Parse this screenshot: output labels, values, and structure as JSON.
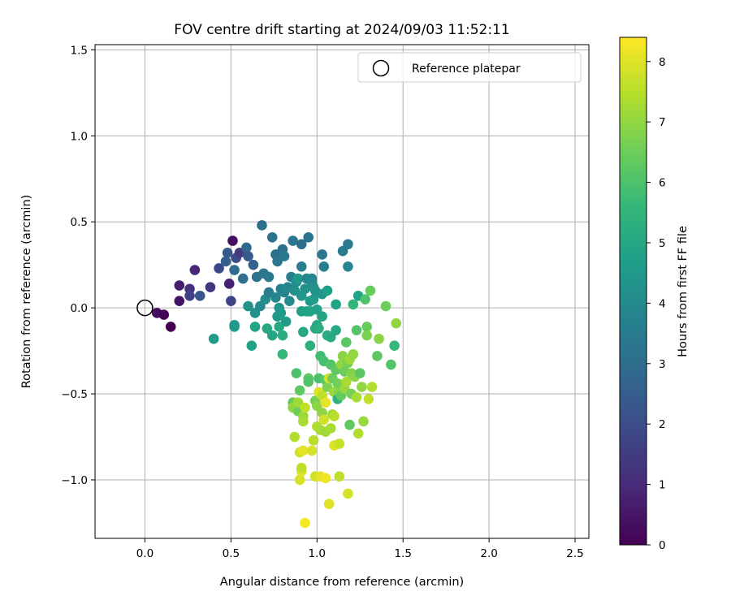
{
  "chart_data": {
    "type": "scatter",
    "title": "FOV centre drift starting at 2024/09/03 11:52:11",
    "xlabel": "Angular distance from reference (arcmin)",
    "ylabel": "Rotation from reference (arcmin)",
    "xlim": [
      -0.29,
      2.58
    ],
    "ylim": [
      -1.34,
      1.53
    ],
    "xticks": [
      0.0,
      0.5,
      1.0,
      1.5,
      2.0,
      2.5
    ],
    "xtick_labels": [
      "0.0",
      "0.5",
      "1.0",
      "1.5",
      "2.0",
      "2.5"
    ],
    "yticks": [
      -1.0,
      -0.5,
      0.0,
      0.5,
      1.0,
      1.5
    ],
    "ytick_labels": [
      "−1.0",
      "−0.5",
      "0.0",
      "0.5",
      "1.0",
      "1.5"
    ],
    "grid": true,
    "legend": {
      "position": "top-right",
      "entries": [
        "Reference platepar"
      ]
    },
    "reference_point": {
      "x": 0.0,
      "y": 0.0,
      "label": "Reference platepar"
    },
    "colorbar": {
      "label": "Hours from first FF file",
      "min": 0,
      "max": 8.4,
      "ticks": [
        0,
        1,
        2,
        3,
        4,
        5,
        6,
        7,
        8
      ],
      "tick_labels": [
        "0",
        "1",
        "2",
        "3",
        "4",
        "5",
        "6",
        "7",
        "8"
      ],
      "colormap": [
        "#440154",
        "#482878",
        "#3e4989",
        "#31688e",
        "#26828e",
        "#1f9e89",
        "#35b779",
        "#6ece58",
        "#b5de2b",
        "#fde725"
      ]
    },
    "points": [
      {
        "x": 0.07,
        "y": -0.03,
        "h": 0.3
      },
      {
        "x": 0.11,
        "y": -0.04,
        "h": 0.1
      },
      {
        "x": 0.15,
        "y": -0.11,
        "h": 0.0
      },
      {
        "x": 0.2,
        "y": 0.04,
        "h": 0.4
      },
      {
        "x": 0.2,
        "y": 0.13,
        "h": 0.7
      },
      {
        "x": 0.26,
        "y": 0.11,
        "h": 1.2
      },
      {
        "x": 0.26,
        "y": 0.07,
        "h": 1.6
      },
      {
        "x": 0.29,
        "y": 0.22,
        "h": 0.9
      },
      {
        "x": 0.32,
        "y": 0.07,
        "h": 2.2
      },
      {
        "x": 0.38,
        "y": 0.12,
        "h": 1.3
      },
      {
        "x": 0.4,
        "y": -0.18,
        "h": 4.6
      },
      {
        "x": 0.43,
        "y": 0.23,
        "h": 1.8
      },
      {
        "x": 0.47,
        "y": 0.27,
        "h": 2.5
      },
      {
        "x": 0.48,
        "y": 0.32,
        "h": 2.3
      },
      {
        "x": 0.49,
        "y": 0.14,
        "h": 0.8
      },
      {
        "x": 0.5,
        "y": 0.04,
        "h": 1.7
      },
      {
        "x": 0.51,
        "y": 0.39,
        "h": 0.3
      },
      {
        "x": 0.52,
        "y": -0.11,
        "h": 4.7
      },
      {
        "x": 0.52,
        "y": -0.1,
        "h": 4.5
      },
      {
        "x": 0.52,
        "y": 0.22,
        "h": 2.9
      },
      {
        "x": 0.53,
        "y": 0.29,
        "h": 2.0
      },
      {
        "x": 0.55,
        "y": 0.32,
        "h": 1.5
      },
      {
        "x": 0.57,
        "y": 0.17,
        "h": 3.0
      },
      {
        "x": 0.59,
        "y": 0.35,
        "h": 2.8
      },
      {
        "x": 0.6,
        "y": 0.3,
        "h": 2.4
      },
      {
        "x": 0.6,
        "y": 0.01,
        "h": 4.3
      },
      {
        "x": 0.62,
        "y": -0.22,
        "h": 4.8
      },
      {
        "x": 0.63,
        "y": 0.25,
        "h": 2.6
      },
      {
        "x": 0.64,
        "y": -0.11,
        "h": 4.9
      },
      {
        "x": 0.64,
        "y": -0.03,
        "h": 4.2
      },
      {
        "x": 0.65,
        "y": 0.18,
        "h": 3.2
      },
      {
        "x": 0.67,
        "y": 0.01,
        "h": 4.0
      },
      {
        "x": 0.68,
        "y": 0.48,
        "h": 3.1
      },
      {
        "x": 0.69,
        "y": 0.2,
        "h": 3.3
      },
      {
        "x": 0.7,
        "y": 0.05,
        "h": 4.1
      },
      {
        "x": 0.71,
        "y": -0.12,
        "h": 5.0
      },
      {
        "x": 0.72,
        "y": 0.18,
        "h": 3.4
      },
      {
        "x": 0.72,
        "y": 0.09,
        "h": 3.6
      },
      {
        "x": 0.74,
        "y": -0.16,
        "h": 4.9
      },
      {
        "x": 0.74,
        "y": 0.41,
        "h": 3.2
      },
      {
        "x": 0.76,
        "y": 0.31,
        "h": 3.1
      },
      {
        "x": 0.76,
        "y": 0.06,
        "h": 3.9
      },
      {
        "x": 0.77,
        "y": 0.27,
        "h": 3.3
      },
      {
        "x": 0.77,
        "y": -0.05,
        "h": 4.4
      },
      {
        "x": 0.78,
        "y": 0.0,
        "h": 4.3
      },
      {
        "x": 0.78,
        "y": -0.11,
        "h": 5.0
      },
      {
        "x": 0.79,
        "y": -0.03,
        "h": 4.5
      },
      {
        "x": 0.79,
        "y": 0.11,
        "h": 3.7
      },
      {
        "x": 0.8,
        "y": -0.16,
        "h": 5.1
      },
      {
        "x": 0.8,
        "y": 0.34,
        "h": 3.0
      },
      {
        "x": 0.8,
        "y": -0.27,
        "h": 5.6
      },
      {
        "x": 0.81,
        "y": 0.09,
        "h": 3.8
      },
      {
        "x": 0.81,
        "y": 0.3,
        "h": 3.4
      },
      {
        "x": 0.82,
        "y": -0.08,
        "h": 4.6
      },
      {
        "x": 0.83,
        "y": 0.12,
        "h": 3.9
      },
      {
        "x": 0.84,
        "y": 0.04,
        "h": 4.0
      },
      {
        "x": 0.85,
        "y": 0.18,
        "h": 3.6
      },
      {
        "x": 0.86,
        "y": 0.39,
        "h": 3.3
      },
      {
        "x": 0.86,
        "y": -0.55,
        "h": 6.4
      },
      {
        "x": 0.86,
        "y": -0.58,
        "h": 7.0
      },
      {
        "x": 0.87,
        "y": -0.75,
        "h": 7.4
      },
      {
        "x": 0.87,
        "y": 0.1,
        "h": 4.2
      },
      {
        "x": 0.88,
        "y": -0.38,
        "h": 6.0
      },
      {
        "x": 0.88,
        "y": 0.15,
        "h": 4.1
      },
      {
        "x": 0.89,
        "y": -0.6,
        "h": 6.5
      },
      {
        "x": 0.89,
        "y": 0.17,
        "h": 4.5
      },
      {
        "x": 0.89,
        "y": -0.55,
        "h": 7.2
      },
      {
        "x": 0.9,
        "y": -0.48,
        "h": 6.3
      },
      {
        "x": 0.9,
        "y": -0.84,
        "h": 7.8
      },
      {
        "x": 0.9,
        "y": -1.0,
        "h": 7.9
      },
      {
        "x": 0.91,
        "y": -0.95,
        "h": 8.0
      },
      {
        "x": 0.91,
        "y": -0.93,
        "h": 7.6
      },
      {
        "x": 0.91,
        "y": 0.37,
        "h": 3.1
      },
      {
        "x": 0.91,
        "y": 0.24,
        "h": 3.5
      },
      {
        "x": 0.91,
        "y": 0.07,
        "h": 4.4
      },
      {
        "x": 0.91,
        "y": -0.02,
        "h": 4.7
      },
      {
        "x": 0.92,
        "y": -0.14,
        "h": 5.0
      },
      {
        "x": 0.92,
        "y": -0.83,
        "h": 8.1
      },
      {
        "x": 0.92,
        "y": -0.63,
        "h": 7.1
      },
      {
        "x": 0.92,
        "y": -0.66,
        "h": 7.3
      },
      {
        "x": 0.93,
        "y": -1.25,
        "h": 8.3
      },
      {
        "x": 0.93,
        "y": -0.58,
        "h": 7.6
      },
      {
        "x": 0.93,
        "y": 0.11,
        "h": 4.3
      },
      {
        "x": 0.94,
        "y": 0.17,
        "h": 3.9
      },
      {
        "x": 0.94,
        "y": -0.02,
        "h": 4.8
      },
      {
        "x": 0.95,
        "y": 0.41,
        "h": 3.2
      },
      {
        "x": 0.95,
        "y": -0.41,
        "h": 6.2
      },
      {
        "x": 0.95,
        "y": -0.43,
        "h": 6.1
      },
      {
        "x": 0.96,
        "y": 0.04,
        "h": 4.4
      },
      {
        "x": 0.96,
        "y": -0.22,
        "h": 5.3
      },
      {
        "x": 0.96,
        "y": -0.02,
        "h": 4.9
      },
      {
        "x": 0.97,
        "y": 0.17,
        "h": 3.8
      },
      {
        "x": 0.97,
        "y": 0.15,
        "h": 4.0
      },
      {
        "x": 0.97,
        "y": -0.83,
        "h": 7.9
      },
      {
        "x": 0.98,
        "y": 0.12,
        "h": 4.2
      },
      {
        "x": 0.98,
        "y": -0.77,
        "h": 7.5
      },
      {
        "x": 0.98,
        "y": 0.05,
        "h": 4.6
      },
      {
        "x": 0.99,
        "y": -0.54,
        "h": 6.6
      },
      {
        "x": 0.99,
        "y": -0.12,
        "h": 5.1
      },
      {
        "x": 0.99,
        "y": -0.98,
        "h": 7.8
      },
      {
        "x": 0.99,
        "y": 0.1,
        "h": 4.3
      },
      {
        "x": 1.0,
        "y": -0.69,
        "h": 7.4
      },
      {
        "x": 1.0,
        "y": -0.01,
        "h": 4.8
      },
      {
        "x": 1.0,
        "y": -0.1,
        "h": 5.0
      },
      {
        "x": 1.0,
        "y": -0.57,
        "h": 6.9
      },
      {
        "x": 1.01,
        "y": -0.49,
        "h": 8.0
      },
      {
        "x": 1.01,
        "y": -0.41,
        "h": 6.0
      },
      {
        "x": 1.01,
        "y": -0.12,
        "h": 5.2
      },
      {
        "x": 1.02,
        "y": -0.71,
        "h": 7.3
      },
      {
        "x": 1.02,
        "y": -0.28,
        "h": 5.8
      },
      {
        "x": 1.02,
        "y": -0.98,
        "h": 8.1
      },
      {
        "x": 1.03,
        "y": 0.31,
        "h": 3.3
      },
      {
        "x": 1.03,
        "y": -0.51,
        "h": 7.6
      },
      {
        "x": 1.03,
        "y": -0.61,
        "h": 7.0
      },
      {
        "x": 1.03,
        "y": -0.05,
        "h": 4.9
      },
      {
        "x": 1.03,
        "y": 0.08,
        "h": 4.4
      },
      {
        "x": 1.04,
        "y": -0.31,
        "h": 5.9
      },
      {
        "x": 1.04,
        "y": -0.65,
        "h": 7.8
      },
      {
        "x": 1.04,
        "y": 0.24,
        "h": 3.6
      },
      {
        "x": 1.05,
        "y": -0.99,
        "h": 8.2
      },
      {
        "x": 1.05,
        "y": -0.55,
        "h": 8.1
      },
      {
        "x": 1.05,
        "y": -0.42,
        "h": 6.2
      },
      {
        "x": 1.05,
        "y": -0.72,
        "h": 7.2
      },
      {
        "x": 1.06,
        "y": -0.16,
        "h": 5.2
      },
      {
        "x": 1.06,
        "y": 0.1,
        "h": 4.7
      },
      {
        "x": 1.06,
        "y": -0.46,
        "h": 6.7
      },
      {
        "x": 1.07,
        "y": -1.14,
        "h": 8.0
      },
      {
        "x": 1.07,
        "y": -0.41,
        "h": 7.9
      },
      {
        "x": 1.08,
        "y": -0.33,
        "h": 6.1
      },
      {
        "x": 1.08,
        "y": -0.7,
        "h": 7.3
      },
      {
        "x": 1.08,
        "y": -0.17,
        "h": 5.1
      },
      {
        "x": 1.09,
        "y": -0.62,
        "h": 7.2
      },
      {
        "x": 1.09,
        "y": -0.41,
        "h": 6.5
      },
      {
        "x": 1.1,
        "y": -0.8,
        "h": 8.0
      },
      {
        "x": 1.1,
        "y": -0.63,
        "h": 7.5
      },
      {
        "x": 1.1,
        "y": -0.49,
        "h": 7.1
      },
      {
        "x": 1.11,
        "y": -0.36,
        "h": 6.3
      },
      {
        "x": 1.11,
        "y": -0.13,
        "h": 5.0
      },
      {
        "x": 1.11,
        "y": 0.02,
        "h": 4.8
      },
      {
        "x": 1.12,
        "y": -0.53,
        "h": 5.3
      },
      {
        "x": 1.12,
        "y": -0.44,
        "h": 6.6
      },
      {
        "x": 1.13,
        "y": -0.98,
        "h": 7.6
      },
      {
        "x": 1.13,
        "y": -0.79,
        "h": 7.7
      },
      {
        "x": 1.13,
        "y": -0.49,
        "h": 6.8
      },
      {
        "x": 1.14,
        "y": -0.33,
        "h": 7.0
      },
      {
        "x": 1.14,
        "y": -0.51,
        "h": 6.4
      },
      {
        "x": 1.15,
        "y": 0.33,
        "h": 3.5
      },
      {
        "x": 1.15,
        "y": -0.28,
        "h": 6.9
      },
      {
        "x": 1.16,
        "y": -0.47,
        "h": 7.1
      },
      {
        "x": 1.16,
        "y": -0.37,
        "h": 6.5
      },
      {
        "x": 1.17,
        "y": -0.43,
        "h": 7.3
      },
      {
        "x": 1.17,
        "y": -0.2,
        "h": 6.2
      },
      {
        "x": 1.18,
        "y": -1.08,
        "h": 7.9
      },
      {
        "x": 1.18,
        "y": 0.24,
        "h": 3.8
      },
      {
        "x": 1.18,
        "y": -0.32,
        "h": 6.6
      },
      {
        "x": 1.18,
        "y": 0.37,
        "h": 3.4
      },
      {
        "x": 1.19,
        "y": -0.3,
        "h": 7.2
      },
      {
        "x": 1.19,
        "y": -0.68,
        "h": 6.3
      },
      {
        "x": 1.2,
        "y": -0.5,
        "h": 6.6
      },
      {
        "x": 1.2,
        "y": -0.38,
        "h": 6.8
      },
      {
        "x": 1.21,
        "y": -0.27,
        "h": 7.0
      },
      {
        "x": 1.21,
        "y": 0.02,
        "h": 5.5
      },
      {
        "x": 1.22,
        "y": -0.4,
        "h": 6.9
      },
      {
        "x": 1.23,
        "y": -0.13,
        "h": 6.1
      },
      {
        "x": 1.23,
        "y": -0.52,
        "h": 7.3
      },
      {
        "x": 1.24,
        "y": 0.07,
        "h": 4.8
      },
      {
        "x": 1.24,
        "y": -0.73,
        "h": 7.4
      },
      {
        "x": 1.25,
        "y": -0.38,
        "h": 6.2
      },
      {
        "x": 1.26,
        "y": -0.46,
        "h": 7.0
      },
      {
        "x": 1.27,
        "y": -0.66,
        "h": 7.1
      },
      {
        "x": 1.28,
        "y": 0.05,
        "h": 6.0
      },
      {
        "x": 1.29,
        "y": -0.11,
        "h": 6.4
      },
      {
        "x": 1.29,
        "y": -0.16,
        "h": 6.7
      },
      {
        "x": 1.3,
        "y": -0.53,
        "h": 7.6
      },
      {
        "x": 1.31,
        "y": 0.1,
        "h": 6.4
      },
      {
        "x": 1.32,
        "y": -0.46,
        "h": 7.4
      },
      {
        "x": 1.35,
        "y": -0.28,
        "h": 6.3
      },
      {
        "x": 1.36,
        "y": -0.18,
        "h": 6.9
      },
      {
        "x": 1.4,
        "y": 0.01,
        "h": 6.5
      },
      {
        "x": 1.43,
        "y": -0.33,
        "h": 6.1
      },
      {
        "x": 1.45,
        "y": -0.22,
        "h": 5.6
      },
      {
        "x": 1.46,
        "y": -0.09,
        "h": 7.0
      }
    ]
  }
}
